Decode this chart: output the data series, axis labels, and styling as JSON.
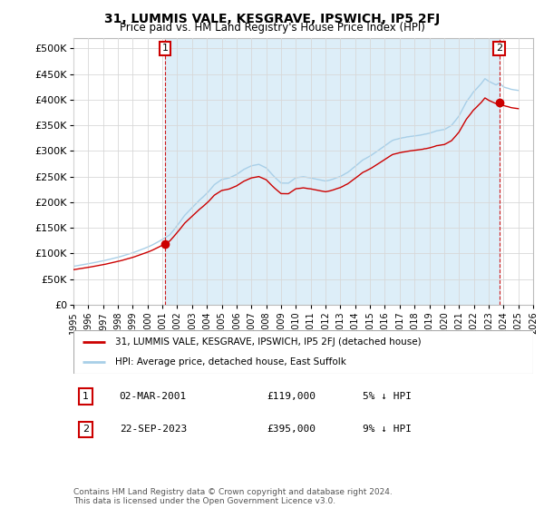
{
  "title": "31, LUMMIS VALE, KESGRAVE, IPSWICH, IP5 2FJ",
  "subtitle": "Price paid vs. HM Land Registry's House Price Index (HPI)",
  "legend_line1": "31, LUMMIS VALE, KESGRAVE, IPSWICH, IP5 2FJ (detached house)",
  "legend_line2": "HPI: Average price, detached house, East Suffolk",
  "annotation1_label": "1",
  "annotation1_date": "02-MAR-2001",
  "annotation1_price": "£119,000",
  "annotation1_pct": "5% ↓ HPI",
  "annotation2_label": "2",
  "annotation2_date": "22-SEP-2023",
  "annotation2_price": "£395,000",
  "annotation2_pct": "9% ↓ HPI",
  "footer": "Contains HM Land Registry data © Crown copyright and database right 2024.\nThis data is licensed under the Open Government Licence v3.0.",
  "hpi_color": "#a8cfe8",
  "price_color": "#cc0000",
  "annotation_color": "#cc0000",
  "shade_color": "#ddeef8",
  "background_color": "#ffffff",
  "grid_color": "#d8d8d8",
  "ylim": [
    0,
    520000
  ],
  "yticks": [
    0,
    50000,
    100000,
    150000,
    200000,
    250000,
    300000,
    350000,
    400000,
    450000,
    500000
  ],
  "sale1_x": 2001.17,
  "sale1_y": 119000,
  "sale2_x": 2023.72,
  "sale2_y": 395000,
  "xmin": 1995,
  "xmax": 2026
}
